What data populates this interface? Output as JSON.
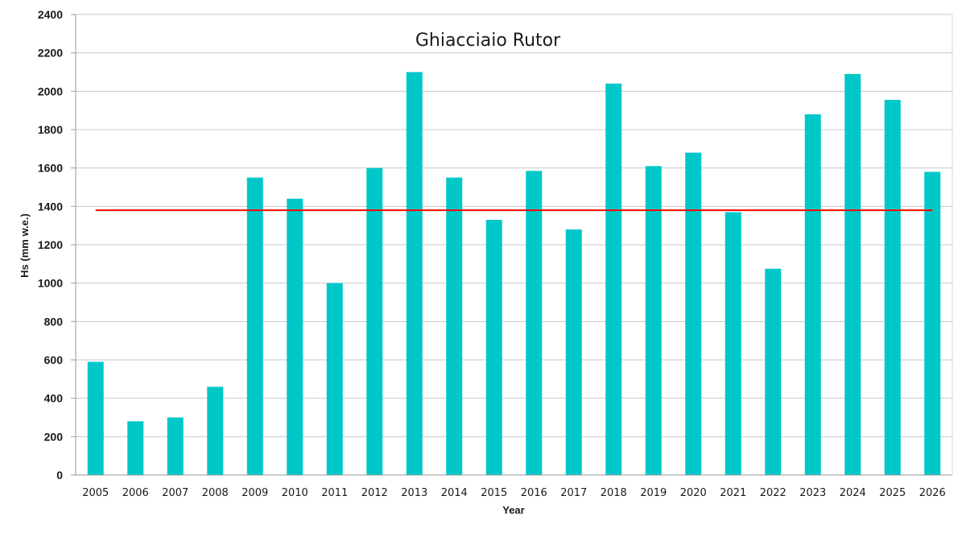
{
  "chart_data": {
    "type": "bar",
    "title": "Ghiacciaio Rutor",
    "xlabel": "Year",
    "ylabel": "Hs (mm w.e.)",
    "ylim": [
      0,
      2400
    ],
    "yticks": [
      "0",
      "200",
      "400",
      "600",
      "800",
      "1000",
      "1200",
      "1400",
      "1600",
      "1800",
      "2000",
      "2200",
      "2400"
    ],
    "categories": [
      "2005",
      "2006",
      "2007",
      "2008",
      "2009",
      "2010",
      "2011",
      "2012",
      "2013",
      "2014",
      "2015",
      "2016",
      "2017",
      "2018",
      "2019",
      "2020",
      "2021",
      "2022",
      "2023",
      "2024",
      "2025",
      "2026"
    ],
    "values": [
      590,
      280,
      300,
      460,
      1550,
      1440,
      1000,
      1600,
      2100,
      1550,
      1330,
      1585,
      1280,
      2040,
      1610,
      1680,
      1370,
      1075,
      1880,
      2090,
      1955,
      1580
    ],
    "mean_line": 1380,
    "bar_color": "#00c8c8",
    "mean_line_color": "#ff0000",
    "grid": true,
    "legend": "none"
  }
}
